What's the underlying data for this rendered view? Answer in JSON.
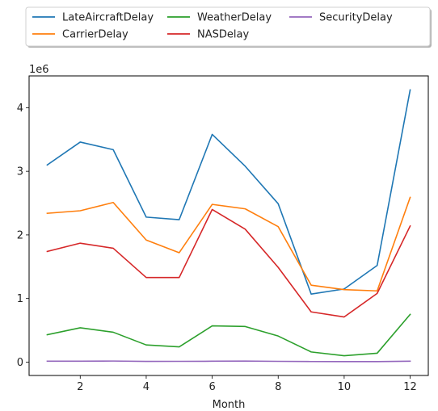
{
  "chart_data": {
    "type": "line",
    "xlabel": "Month",
    "ylabel": "",
    "y_scale_label": "1e6",
    "xlim": [
      0.45,
      12.55
    ],
    "ylim": [
      -210000,
      4500000
    ],
    "x_ticks": [
      2,
      4,
      6,
      8,
      10,
      12
    ],
    "y_ticks": [
      0,
      1000000,
      2000000,
      3000000,
      4000000
    ],
    "y_tick_labels": [
      "0",
      "1",
      "2",
      "3",
      "4"
    ],
    "grid": false,
    "legend_placement": "top, above plot, 3 columns",
    "x": [
      1,
      2,
      3,
      4,
      5,
      6,
      7,
      8,
      9,
      10,
      11,
      12
    ],
    "series": [
      {
        "name": "LateAircraftDelay",
        "color": "#1f77b4",
        "values": [
          3100000,
          3460000,
          3340000,
          2280000,
          2240000,
          3580000,
          3080000,
          2490000,
          1070000,
          1150000,
          1520000,
          4280000
        ]
      },
      {
        "name": "CarrierDelay",
        "color": "#ff7f0e",
        "values": [
          2340000,
          2380000,
          2510000,
          1920000,
          1720000,
          2480000,
          2410000,
          2130000,
          1210000,
          1140000,
          1120000,
          2590000
        ]
      },
      {
        "name": "WeatherDelay",
        "color": "#2ca02c",
        "values": [
          430000,
          540000,
          470000,
          270000,
          240000,
          570000,
          560000,
          410000,
          160000,
          100000,
          140000,
          750000
        ]
      },
      {
        "name": "NASDelay",
        "color": "#d62728",
        "values": [
          1740000,
          1870000,
          1790000,
          1330000,
          1330000,
          2400000,
          2090000,
          1490000,
          790000,
          710000,
          1080000,
          2140000
        ]
      },
      {
        "name": "SecurityDelay",
        "color": "#9467bd",
        "values": [
          15000,
          14000,
          17000,
          11000,
          12000,
          14000,
          16000,
          12000,
          9000,
          8000,
          8000,
          15000
        ]
      }
    ]
  }
}
